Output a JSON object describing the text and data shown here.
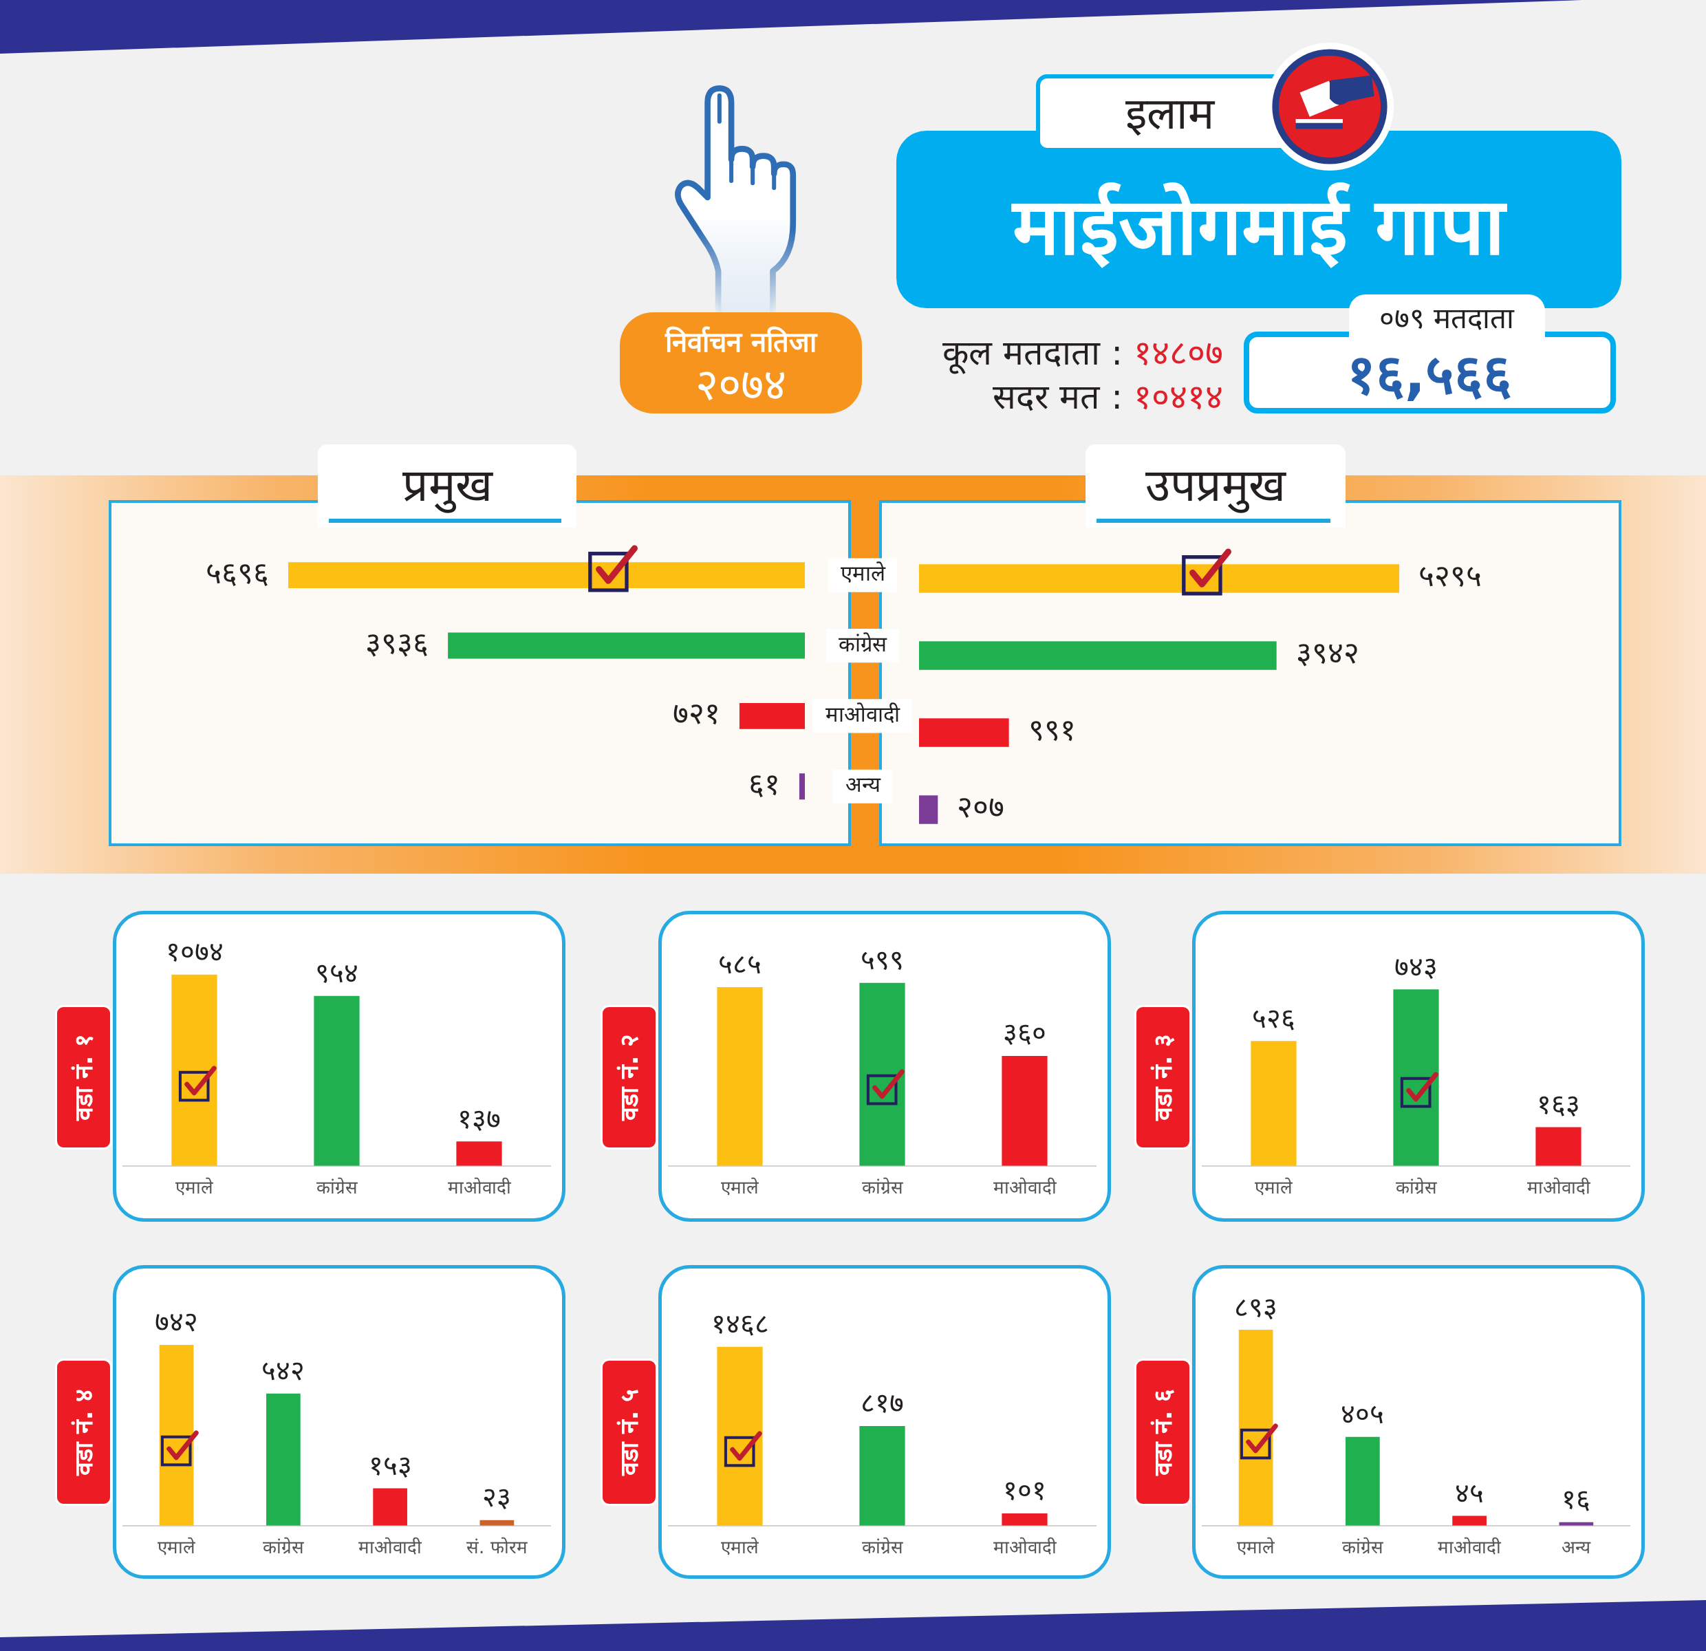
{
  "chart_data": [
    {
      "type": "other",
      "title": "माईजोगमाई गापा",
      "subtitle": "इलाम",
      "annotations": [
        "निर्वाचन नतिजा",
        "२०७४",
        "कूल मतदाता : १४८०७",
        "सदर मत : १०४१४",
        "०७९ मतदाता",
        "१६,५६६"
      ]
    },
    {
      "type": "bar",
      "orientation": "horizontal",
      "title": "प्रमुख",
      "categories": [
        "एमाले",
        "कांग्रेस",
        "माओवादी",
        "अन्य"
      ],
      "values": [
        5696,
        3936,
        721,
        61
      ],
      "colors": [
        "#fdbf12",
        "#20b04f",
        "#ed1c24",
        "#7a3c96"
      ],
      "value_labels": [
        "५६९६",
        "३९३६",
        "७२१",
        "६१"
      ],
      "tick_labels": "y"
    },
    {
      "type": "bar",
      "orientation": "horizontal",
      "title": "उपप्रमुख",
      "categories": [
        null,
        null,
        null,
        null
      ],
      "values": [
        5295,
        3942,
        991,
        207
      ],
      "colors": [
        "#fdbf12",
        "#20b04f",
        "#ed1c24",
        "#7a3c96"
      ],
      "value_labels": [
        "५२९५",
        "३९४२",
        "९९१",
        "२०७"
      ],
      "tick_labels": false
    },
    {
      "type": "bar",
      "title": "वडा नं. १",
      "categories": [
        "एमाले",
        "कांग्रेस",
        "माओवादी"
      ],
      "values": [
        1074,
        954,
        137
      ],
      "colors": [
        "#fdbf12",
        "#20b04f",
        "#ed1c24"
      ],
      "value_labels": [
        "१०७४",
        "९५४",
        "१३७"
      ],
      "tick_labels": "x"
    },
    {
      "type": "bar",
      "title": "वडा नं. २",
      "categories": [
        "एमाले",
        "कांग्रेस",
        "माओवादी"
      ],
      "values": [
        585,
        599,
        360
      ],
      "colors": [
        "#fdbf12",
        "#20b04f",
        "#ed1c24"
      ],
      "value_labels": [
        "५८५",
        "५९९",
        "३६०"
      ],
      "tick_labels": "x"
    },
    {
      "type": "bar",
      "title": "वडा नं. ३",
      "categories": [
        "एमाले",
        "कांग्रेस",
        "माओवादी"
      ],
      "values": [
        526,
        743,
        163
      ],
      "colors": [
        "#fdbf12",
        "#20b04f",
        "#ed1c24"
      ],
      "value_labels": [
        "५२६",
        "७४३",
        "१६३"
      ],
      "tick_labels": "x"
    },
    {
      "type": "bar",
      "title": "वडा नं. ४",
      "categories": [
        "एमाले",
        "कांग्रेस",
        "माओवादी",
        "सं. फोरम"
      ],
      "values": [
        742,
        542,
        153,
        23
      ],
      "colors": [
        "#fdbf12",
        "#20b04f",
        "#ed1c24",
        "#c9622b"
      ],
      "value_labels": [
        "७४२",
        "५४२",
        "१५३",
        "२३"
      ],
      "tick_labels": "x"
    },
    {
      "type": "bar",
      "title": "वडा नं. ५",
      "categories": [
        "एमाले",
        "कांग्रेस",
        "माओवादी"
      ],
      "values": [
        1468,
        817,
        101
      ],
      "colors": [
        "#fdbf12",
        "#20b04f",
        "#ed1c24"
      ],
      "value_labels": [
        "१४६८",
        "८१७",
        "१०१"
      ],
      "tick_labels": "x"
    },
    {
      "type": "bar",
      "title": "वडा नं. ६",
      "categories": [
        "एमाले",
        "कांग्रेस",
        "माओवादी",
        "अन्य"
      ],
      "values": [
        893,
        405,
        45,
        16
      ],
      "colors": [
        "#fdbf12",
        "#20b04f",
        "#ed1c24",
        "#7a3c96"
      ],
      "value_labels": [
        "८९३",
        "४०५",
        "४५",
        "१६"
      ],
      "tick_labels": "x"
    }
  ]
}
